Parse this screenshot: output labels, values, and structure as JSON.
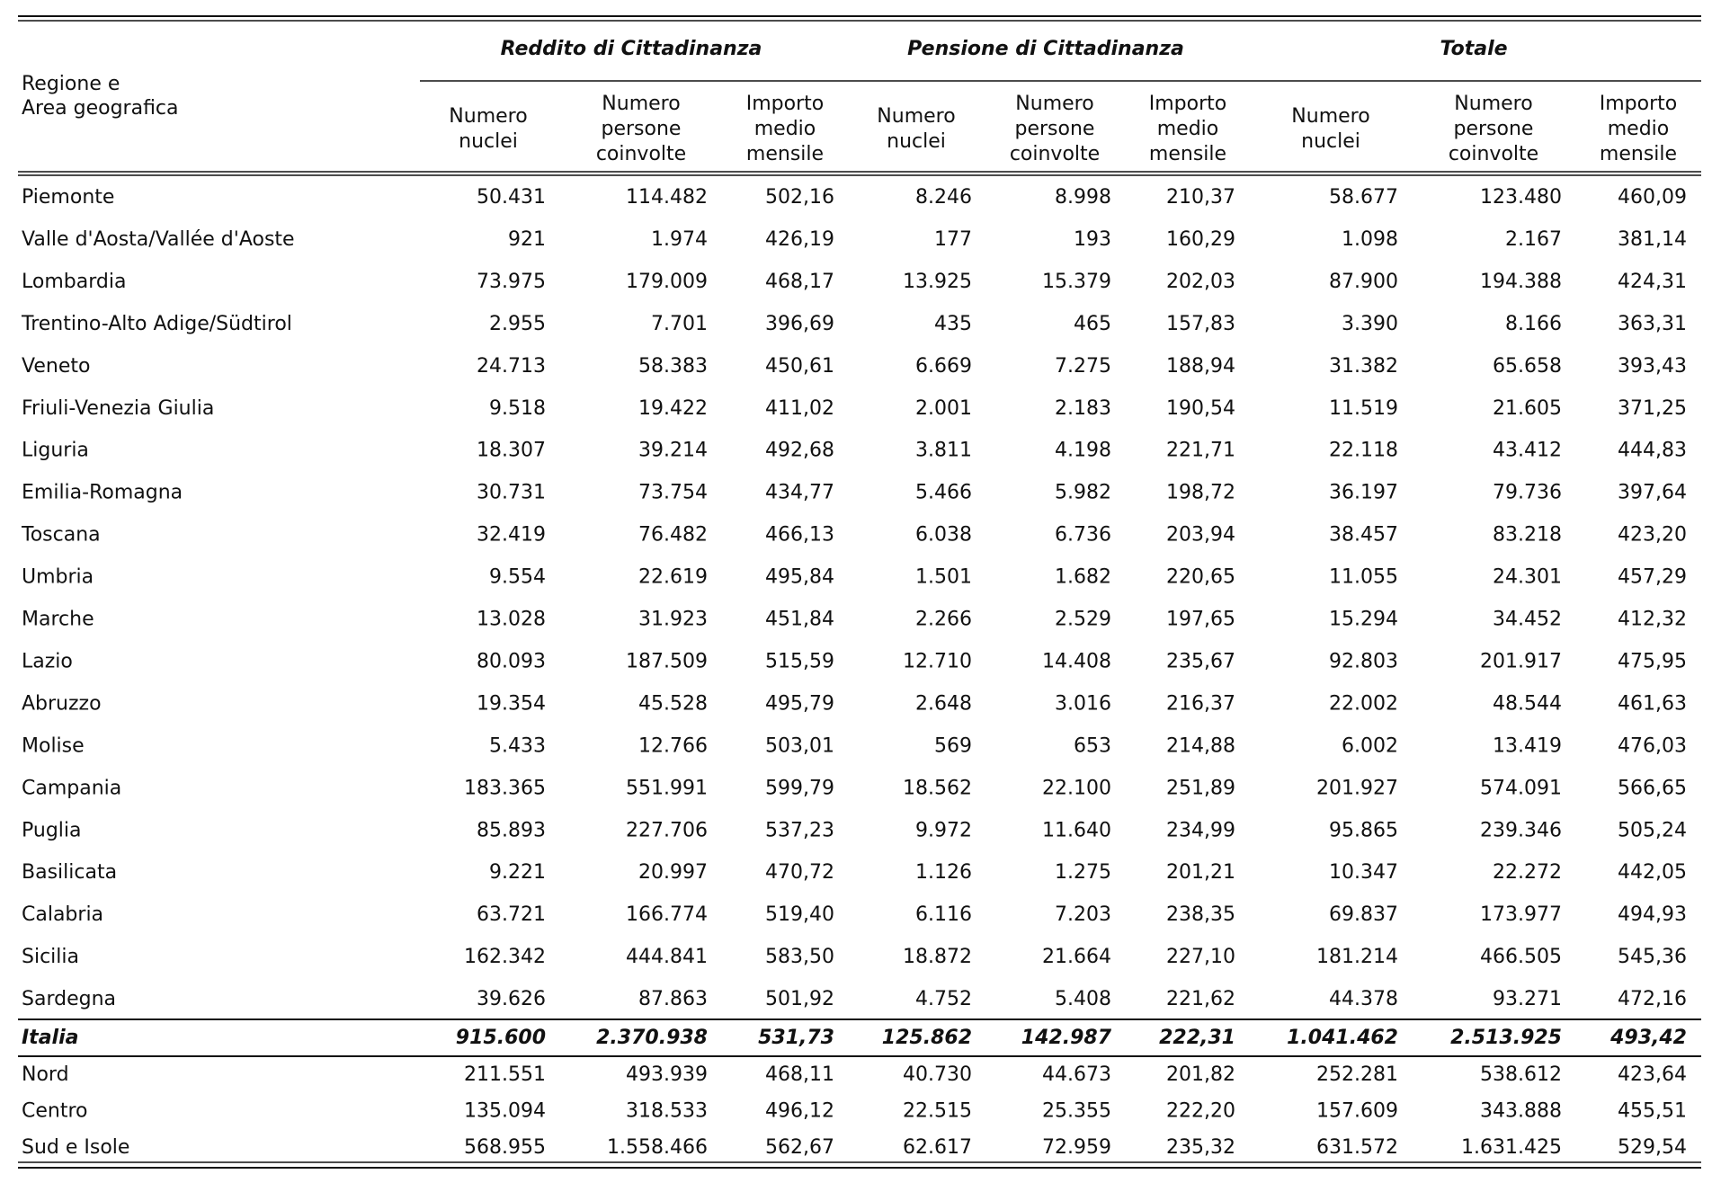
{
  "table": {
    "corner_header": [
      "Regione e",
      "Area geografica"
    ],
    "groups": [
      "Reddito di Cittadinanza",
      "Pensione di Cittadinanza",
      "Totale"
    ],
    "subheaders": [
      [
        "Numero",
        "nuclei"
      ],
      [
        "Numero",
        "persone",
        "coinvolte"
      ],
      [
        "Importo",
        "medio",
        "mensile"
      ],
      [
        "Numero",
        "nuclei"
      ],
      [
        "Numero",
        "persone",
        "coinvolte"
      ],
      [
        "Importo",
        "medio",
        "mensile"
      ],
      [
        "Numero",
        "nuclei"
      ],
      [
        "Numero",
        "persone",
        "coinvolte"
      ],
      [
        "Importo",
        "medio",
        "mensile"
      ]
    ],
    "rows": [
      {
        "label": "Piemonte",
        "values": [
          "50.431",
          "114.482",
          "502,16",
          "8.246",
          "8.998",
          "210,37",
          "58.677",
          "123.480",
          "460,09"
        ]
      },
      {
        "label": "Valle d'Aosta/Vallée d'Aoste",
        "values": [
          "921",
          "1.974",
          "426,19",
          "177",
          "193",
          "160,29",
          "1.098",
          "2.167",
          "381,14"
        ]
      },
      {
        "label": "Lombardia",
        "values": [
          "73.975",
          "179.009",
          "468,17",
          "13.925",
          "15.379",
          "202,03",
          "87.900",
          "194.388",
          "424,31"
        ]
      },
      {
        "label": "Trentino-Alto Adige/Südtirol",
        "values": [
          "2.955",
          "7.701",
          "396,69",
          "435",
          "465",
          "157,83",
          "3.390",
          "8.166",
          "363,31"
        ]
      },
      {
        "label": "Veneto",
        "values": [
          "24.713",
          "58.383",
          "450,61",
          "6.669",
          "7.275",
          "188,94",
          "31.382",
          "65.658",
          "393,43"
        ]
      },
      {
        "label": "Friuli-Venezia Giulia",
        "values": [
          "9.518",
          "19.422",
          "411,02",
          "2.001",
          "2.183",
          "190,54",
          "11.519",
          "21.605",
          "371,25"
        ]
      },
      {
        "label": "Liguria",
        "values": [
          "18.307",
          "39.214",
          "492,68",
          "3.811",
          "4.198",
          "221,71",
          "22.118",
          "43.412",
          "444,83"
        ]
      },
      {
        "label": "Emilia-Romagna",
        "values": [
          "30.731",
          "73.754",
          "434,77",
          "5.466",
          "5.982",
          "198,72",
          "36.197",
          "79.736",
          "397,64"
        ]
      },
      {
        "label": "Toscana",
        "values": [
          "32.419",
          "76.482",
          "466,13",
          "6.038",
          "6.736",
          "203,94",
          "38.457",
          "83.218",
          "423,20"
        ]
      },
      {
        "label": "Umbria",
        "values": [
          "9.554",
          "22.619",
          "495,84",
          "1.501",
          "1.682",
          "220,65",
          "11.055",
          "24.301",
          "457,29"
        ]
      },
      {
        "label": "Marche",
        "values": [
          "13.028",
          "31.923",
          "451,84",
          "2.266",
          "2.529",
          "197,65",
          "15.294",
          "34.452",
          "412,32"
        ]
      },
      {
        "label": "Lazio",
        "values": [
          "80.093",
          "187.509",
          "515,59",
          "12.710",
          "14.408",
          "235,67",
          "92.803",
          "201.917",
          "475,95"
        ]
      },
      {
        "label": "Abruzzo",
        "values": [
          "19.354",
          "45.528",
          "495,79",
          "2.648",
          "3.016",
          "216,37",
          "22.002",
          "48.544",
          "461,63"
        ]
      },
      {
        "label": "Molise",
        "values": [
          "5.433",
          "12.766",
          "503,01",
          "569",
          "653",
          "214,88",
          "6.002",
          "13.419",
          "476,03"
        ]
      },
      {
        "label": "Campania",
        "values": [
          "183.365",
          "551.991",
          "599,79",
          "18.562",
          "22.100",
          "251,89",
          "201.927",
          "574.091",
          "566,65"
        ]
      },
      {
        "label": "Puglia",
        "values": [
          "85.893",
          "227.706",
          "537,23",
          "9.972",
          "11.640",
          "234,99",
          "95.865",
          "239.346",
          "505,24"
        ]
      },
      {
        "label": "Basilicata",
        "values": [
          "9.221",
          "20.997",
          "470,72",
          "1.126",
          "1.275",
          "201,21",
          "10.347",
          "22.272",
          "442,05"
        ]
      },
      {
        "label": "Calabria",
        "values": [
          "63.721",
          "166.774",
          "519,40",
          "6.116",
          "7.203",
          "238,35",
          "69.837",
          "173.977",
          "494,93"
        ]
      },
      {
        "label": "Sicilia",
        "values": [
          "162.342",
          "444.841",
          "583,50",
          "18.872",
          "21.664",
          "227,10",
          "181.214",
          "466.505",
          "545,36"
        ]
      },
      {
        "label": "Sardegna",
        "values": [
          "39.626",
          "87.863",
          "501,92",
          "4.752",
          "5.408",
          "221,62",
          "44.378",
          "93.271",
          "472,16"
        ]
      }
    ],
    "total": {
      "label": "Italia",
      "values": [
        "915.600",
        "2.370.938",
        "531,73",
        "125.862",
        "142.987",
        "222,31",
        "1.041.462",
        "2.513.925",
        "493,42"
      ]
    },
    "areas": [
      {
        "label": "Nord",
        "values": [
          "211.551",
          "493.939",
          "468,11",
          "40.730",
          "44.673",
          "201,82",
          "252.281",
          "538.612",
          "423,64"
        ]
      },
      {
        "label": "Centro",
        "values": [
          "135.094",
          "318.533",
          "496,12",
          "22.515",
          "25.355",
          "222,20",
          "157.609",
          "343.888",
          "455,51"
        ]
      },
      {
        "label": "Sud e Isole",
        "values": [
          "568.955",
          "1.558.466",
          "562,67",
          "62.617",
          "72.959",
          "235,32",
          "631.572",
          "1.631.425",
          "529,54"
        ]
      }
    ]
  }
}
